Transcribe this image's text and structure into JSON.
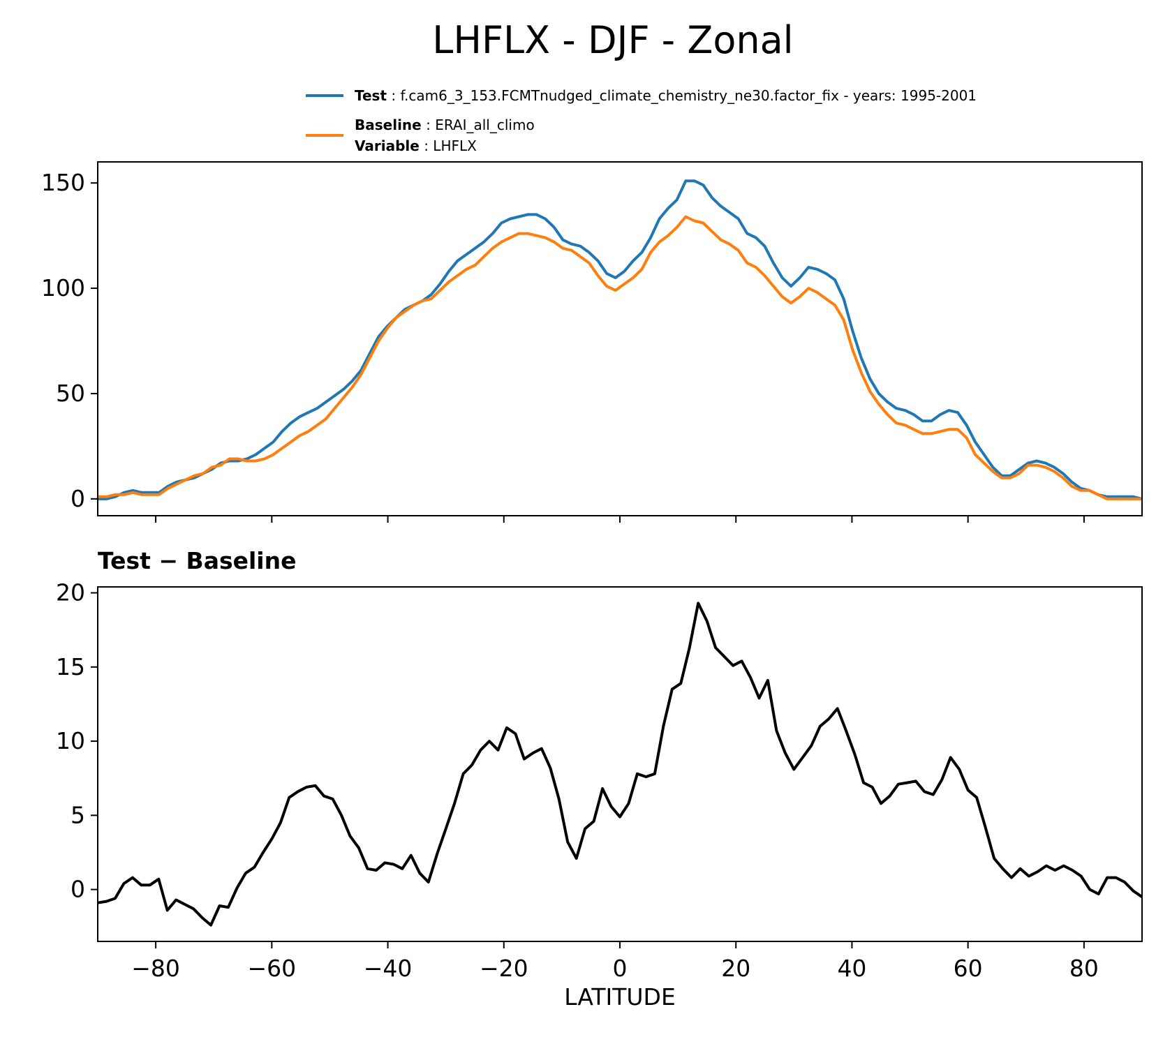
{
  "chart_data": {
    "title": "LHFLX - DJF - Zonal",
    "legend": {
      "placement": "top-right above plot",
      "entries": [
        {
          "series": "test",
          "lines": [
            {
              "key": "Test",
              "value": "f.cam6_3_153.FCMTnudged_climate_chemistry_ne30.factor_fix - years: 1995-2001"
            }
          ]
        },
        {
          "series": "baseline",
          "lines": [
            {
              "key": "Baseline",
              "value": "ERAI_all_climo"
            },
            {
              "key": "Variable",
              "value": "LHFLX"
            }
          ]
        }
      ]
    },
    "panels": [
      {
        "id": "top",
        "type": "line",
        "ylim": [
          -8,
          160
        ],
        "yticks": [
          0,
          50,
          100,
          150
        ],
        "series": [
          {
            "id": "test",
            "name": "Test",
            "color": "#1f77b4",
            "values": [
              0,
              0,
              1,
              3,
              4,
              3,
              3,
              3,
              6,
              8,
              9,
              10,
              12,
              14,
              17,
              18,
              18,
              19,
              21,
              24,
              27,
              32,
              36,
              39,
              41,
              43,
              46,
              49,
              52,
              56,
              61,
              69,
              77,
              82,
              86,
              90,
              92,
              94,
              97,
              102,
              108,
              113,
              116,
              119,
              122,
              126,
              131,
              133,
              134,
              135,
              135,
              133,
              129,
              123,
              121,
              120,
              117,
              113,
              107,
              105,
              108,
              113,
              117,
              124,
              133,
              138,
              142,
              151,
              151,
              149,
              143,
              139,
              136,
              133,
              126,
              124,
              120,
              112,
              105,
              101,
              105,
              110,
              109,
              107,
              104,
              95,
              80,
              67,
              57,
              50,
              46,
              43,
              42,
              40,
              37,
              37,
              40,
              42,
              41,
              35,
              27,
              21,
              15,
              11,
              11,
              14,
              17,
              18,
              17,
              15,
              12,
              8,
              5,
              4,
              2,
              1,
              1,
              1,
              1,
              0
            ]
          },
          {
            "id": "baseline",
            "name": "Baseline",
            "color": "#ff7f0e",
            "values": [
              1,
              1,
              2,
              2,
              3,
              2,
              2,
              2,
              5,
              7,
              9,
              11,
              12,
              15,
              16,
              19,
              19,
              18,
              18,
              19,
              21,
              24,
              27,
              30,
              32,
              35,
              38,
              43,
              48,
              53,
              59,
              67,
              75,
              81,
              86,
              89,
              92,
              94,
              95,
              99,
              103,
              106,
              109,
              111,
              115,
              119,
              122,
              124,
              126,
              126,
              125,
              124,
              122,
              119,
              118,
              115,
              112,
              106,
              101,
              99,
              102,
              105,
              109,
              117,
              122,
              125,
              129,
              134,
              132,
              131,
              127,
              123,
              121,
              118,
              112,
              110,
              106,
              101,
              96,
              93,
              96,
              100,
              98,
              95,
              92,
              85,
              71,
              60,
              51,
              45,
              40,
              36,
              35,
              33,
              31,
              31,
              32,
              33,
              33,
              29,
              21,
              17,
              13,
              10,
              10,
              12,
              16,
              16,
              15,
              13,
              10,
              6,
              4,
              4,
              2,
              0,
              0,
              0,
              0,
              0
            ]
          }
        ]
      },
      {
        "id": "bottom",
        "type": "line",
        "title": "Test − Baseline",
        "ylim": [
          -3.5,
          20.4
        ],
        "yticks": [
          0,
          5,
          10,
          15,
          20
        ],
        "series": [
          {
            "id": "diff",
            "name": "Test - Baseline",
            "color": "#000000",
            "values": [
              -0.9,
              -0.8,
              -0.6,
              0.4,
              0.8,
              0.3,
              0.3,
              0.7,
              -1.4,
              -0.7,
              -1.0,
              -1.3,
              -1.9,
              -2.4,
              -1.1,
              -1.2,
              0.1,
              1.1,
              1.5,
              2.5,
              3.4,
              4.5,
              6.2,
              6.6,
              6.9,
              7.0,
              6.3,
              6.1,
              5.0,
              3.6,
              2.8,
              1.4,
              1.3,
              1.8,
              1.7,
              1.4,
              2.3,
              1.1,
              0.5,
              2.4,
              4.1,
              5.8,
              7.8,
              8.4,
              9.4,
              10.0,
              9.4,
              10.9,
              10.5,
              8.8,
              9.2,
              9.5,
              8.2,
              6.1,
              3.2,
              2.1,
              4.1,
              4.6,
              6.8,
              5.6,
              4.9,
              5.8,
              7.8,
              7.6,
              7.8,
              11.0,
              13.5,
              13.9,
              16.3,
              19.3,
              18.1,
              16.3,
              15.7,
              15.1,
              15.4,
              14.3,
              12.9,
              14.1,
              10.7,
              9.2,
              8.1,
              8.9,
              9.7,
              11.0,
              11.5,
              12.2,
              10.7,
              9.1,
              7.2,
              6.9,
              5.8,
              6.3,
              7.1,
              7.2,
              7.3,
              6.6,
              6.4,
              7.4,
              8.9,
              8.1,
              6.7,
              6.2,
              4.2,
              2.1,
              1.4,
              0.8,
              1.4,
              0.9,
              1.2,
              1.6,
              1.3,
              1.6,
              1.3,
              0.9,
              0.0,
              -0.3,
              0.8,
              0.8,
              0.5,
              -0.1,
              -0.5
            ]
          }
        ]
      }
    ],
    "x": {
      "label": "LATITUDE",
      "xlim": [
        -90,
        90
      ],
      "ticks": [
        -80,
        -60,
        -40,
        -20,
        0,
        20,
        40,
        60,
        80
      ],
      "tick_labels": [
        "−80",
        "−60",
        "−40",
        "−20",
        "0",
        "20",
        "40",
        "60",
        "80"
      ]
    }
  }
}
